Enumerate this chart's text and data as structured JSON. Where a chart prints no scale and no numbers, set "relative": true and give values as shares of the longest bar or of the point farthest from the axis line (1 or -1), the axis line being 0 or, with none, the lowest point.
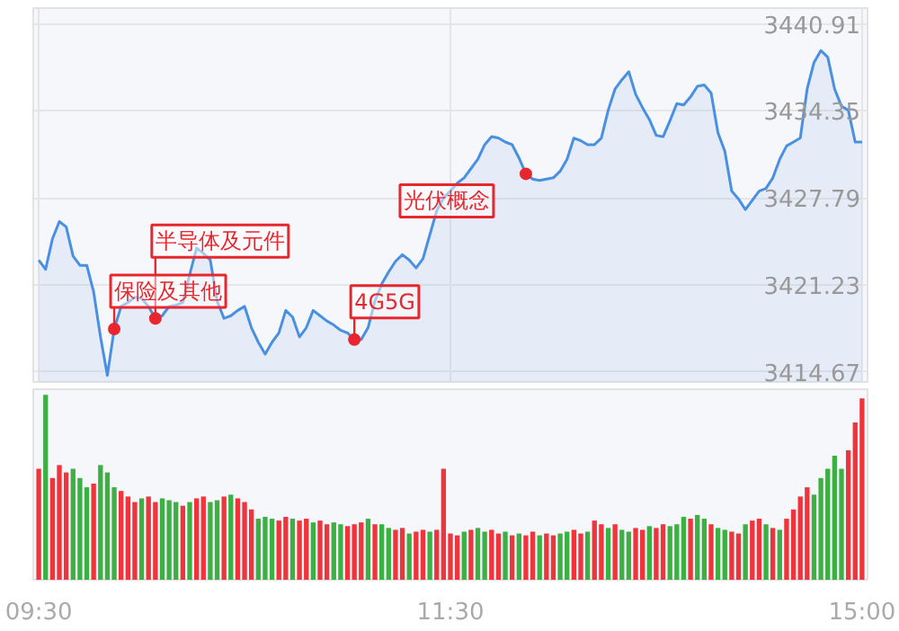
{
  "chart_data": [
    {
      "type": "area",
      "ylim": [
        3413.9,
        3442.1
      ],
      "tick_labels": "y",
      "grid": true,
      "categories": [
        null,
        null,
        null,
        null,
        null,
        null,
        null,
        null,
        null,
        null,
        null,
        null,
        null,
        null,
        null,
        null,
        null,
        null,
        null,
        null,
        null,
        null,
        null,
        null,
        null,
        null,
        null,
        null,
        null,
        null,
        null,
        null,
        null,
        null,
        null,
        null,
        null,
        null,
        null,
        null,
        null,
        null,
        null,
        null,
        null,
        null,
        null,
        null,
        null,
        null,
        null,
        null,
        null,
        null,
        null,
        null,
        null,
        null,
        null,
        null,
        null,
        null,
        null,
        null,
        null,
        null,
        null,
        null,
        null,
        null,
        null,
        null,
        null,
        null,
        null,
        null,
        null,
        null,
        null,
        null,
        null,
        null,
        null,
        null,
        null,
        null,
        null,
        null,
        null,
        null,
        null,
        null,
        null,
        null,
        null,
        null,
        null,
        null,
        null,
        null,
        null,
        null,
        null,
        null,
        null,
        null,
        null,
        null,
        null,
        null,
        null,
        null,
        null,
        null,
        null,
        null,
        null,
        null,
        null,
        null,
        null
      ],
      "yticks": [
        3414.67,
        3421.23,
        3427.79,
        3434.35,
        3440.91
      ],
      "series": [
        {
          "type": "area",
          "color": "#4a90e2",
          "values": [
            3423.1,
            3422.4,
            3424.7,
            3426.0,
            3425.6,
            3423.4,
            3422.7,
            3422.7,
            3420.7,
            3417.3,
            3414.4,
            3417.9,
            3419.6,
            3419.9,
            3420.3,
            3420.2,
            3419.6,
            3418.7,
            3418.9,
            3419.6,
            3419.7,
            3419.9,
            3422.0,
            3424.0,
            3423.6,
            3423.1,
            3420.0,
            3418.7,
            3418.9,
            3419.3,
            3419.6,
            3418.0,
            3416.9,
            3416.0,
            3416.9,
            3417.6,
            3419.3,
            3418.8,
            3417.3,
            3418.0,
            3419.3,
            3418.9,
            3418.5,
            3418.2,
            3417.8,
            3417.6,
            3417.1,
            3417.1,
            3418.0,
            3420.0,
            3421.3,
            3422.2,
            3423.0,
            3423.5,
            3423.1,
            3422.5,
            3423.2,
            3425.0,
            3426.8,
            3427.8,
            3428.3,
            3428.9,
            3429.3,
            3430.0,
            3430.7,
            3431.8,
            3432.4,
            3432.3,
            3432.0,
            3431.8,
            3430.8,
            3429.6,
            3429.2,
            3429.1,
            3429.2,
            3429.3,
            3429.8,
            3430.7,
            3432.3,
            3432.1,
            3431.8,
            3431.8,
            3432.3,
            3434.4,
            3436.0,
            3436.7,
            3437.3,
            3435.6,
            3434.6,
            3433.7,
            3432.5,
            3432.4,
            3433.6,
            3434.9,
            3434.8,
            3435.4,
            3436.2,
            3436.3,
            3435.7,
            3432.7,
            3431.3,
            3428.3,
            3427.7,
            3426.9,
            3427.6,
            3428.3,
            3428.5,
            3429.3,
            3430.7,
            3431.7,
            3432.0,
            3432.3,
            3436.0,
            3438.0,
            3438.9,
            3438.4,
            3436.0,
            3434.7,
            3434.4,
            3432.0,
            3432.0
          ]
        },
        {
          "type": "scatter",
          "color": "#e8262e",
          "values": [
            null,
            null,
            null,
            null,
            null,
            null,
            null,
            null,
            null,
            null,
            null,
            3417.9,
            null,
            null,
            null,
            null,
            null,
            3418.7,
            null,
            null,
            null,
            null,
            null,
            null,
            null,
            null,
            null,
            null,
            null,
            null,
            null,
            null,
            null,
            null,
            null,
            null,
            null,
            null,
            null,
            null,
            null,
            null,
            null,
            null,
            null,
            null,
            3417.1,
            null,
            null,
            null,
            null,
            null,
            null,
            null,
            null,
            null,
            null,
            null,
            null,
            null,
            null,
            null,
            null,
            null,
            null,
            null,
            null,
            null,
            null,
            null,
            null,
            3429.6,
            null,
            null,
            null,
            null,
            null,
            null,
            null,
            null,
            null,
            null,
            null,
            null,
            null,
            null,
            null,
            null,
            null,
            null,
            null,
            null,
            null,
            null,
            null,
            null,
            null,
            null,
            null,
            null,
            null,
            null,
            null,
            null,
            null,
            null,
            null,
            null,
            null,
            null,
            null,
            null,
            null,
            null,
            null,
            null,
            null,
            null,
            null,
            null,
            null
          ]
        }
      ],
      "annotations": [
        "保险及其他",
        "半导体及元件",
        "4G5G",
        "光伏概念"
      ]
    },
    {
      "type": "bar",
      "relative": true,
      "tick_labels": "x",
      "categories": [
        "09:30",
        null,
        null,
        null,
        null,
        null,
        null,
        null,
        null,
        null,
        null,
        null,
        null,
        null,
        null,
        null,
        null,
        null,
        null,
        null,
        null,
        null,
        null,
        null,
        null,
        null,
        null,
        null,
        null,
        null,
        null,
        null,
        null,
        null,
        null,
        null,
        null,
        null,
        null,
        null,
        null,
        null,
        null,
        null,
        null,
        null,
        null,
        null,
        null,
        null,
        null,
        null,
        null,
        null,
        null,
        null,
        null,
        null,
        null,
        null,
        "11:30",
        null,
        null,
        null,
        null,
        null,
        null,
        null,
        null,
        null,
        null,
        null,
        null,
        null,
        null,
        null,
        null,
        null,
        null,
        null,
        null,
        null,
        null,
        null,
        null,
        null,
        null,
        null,
        null,
        null,
        null,
        null,
        null,
        null,
        null,
        null,
        null,
        null,
        null,
        null,
        null,
        null,
        null,
        null,
        null,
        null,
        null,
        null,
        null,
        null,
        null,
        null,
        null,
        null,
        null,
        null,
        null,
        null,
        null,
        null,
        "15:00"
      ],
      "values": [
        0.6,
        1.0,
        0.55,
        0.62,
        0.58,
        0.6,
        0.55,
        0.5,
        0.52,
        0.62,
        0.58,
        0.5,
        0.48,
        0.45,
        0.42,
        0.44,
        0.45,
        0.42,
        0.44,
        0.43,
        0.42,
        0.4,
        0.42,
        0.44,
        0.45,
        0.42,
        0.43,
        0.45,
        0.46,
        0.44,
        0.42,
        0.38,
        0.33,
        0.34,
        0.33,
        0.32,
        0.34,
        0.33,
        0.32,
        0.33,
        0.31,
        0.32,
        0.3,
        0.31,
        0.3,
        0.29,
        0.3,
        0.31,
        0.33,
        0.3,
        0.3,
        0.28,
        0.27,
        0.28,
        0.25,
        0.26,
        0.27,
        0.26,
        0.27,
        0.6,
        0.25,
        0.24,
        0.26,
        0.27,
        0.28,
        0.26,
        0.27,
        0.25,
        0.26,
        0.24,
        0.25,
        0.24,
        0.26,
        0.24,
        0.25,
        0.24,
        0.25,
        0.26,
        0.27,
        0.25,
        0.26,
        0.32,
        0.3,
        0.28,
        0.3,
        0.27,
        0.26,
        0.28,
        0.27,
        0.29,
        0.28,
        0.3,
        0.29,
        0.3,
        0.34,
        0.33,
        0.35,
        0.33,
        0.3,
        0.28,
        0.27,
        0.26,
        0.25,
        0.3,
        0.32,
        0.33,
        0.3,
        0.28,
        0.27,
        0.33,
        0.38,
        0.45,
        0.5,
        0.46,
        0.55,
        0.6,
        0.67,
        0.6,
        0.7,
        0.85,
        0.98
      ],
      "colors": [
        "#f0343c",
        "#3cb043",
        "#f0343c",
        "#f0343c",
        "#f0343c",
        "#3cb043",
        "#3cb043",
        "#3cb043",
        "#f0343c",
        "#3cb043",
        "#3cb043",
        "#3cb043",
        "#f0343c",
        "#f0343c",
        "#f0343c",
        "#3cb043",
        "#f0343c",
        "#f0343c",
        "#3cb043",
        "#3cb043",
        "#3cb043",
        "#f0343c",
        "#3cb043",
        "#f0343c",
        "#f0343c",
        "#3cb043",
        "#3cb043",
        "#f0343c",
        "#3cb043",
        "#f0343c",
        "#f0343c",
        "#f0343c",
        "#3cb043",
        "#3cb043",
        "#3cb043",
        "#f0343c",
        "#f0343c",
        "#3cb043",
        "#f0343c",
        "#f0343c",
        "#3cb043",
        "#f0343c",
        "#f0343c",
        "#3cb043",
        "#3cb043",
        "#f0343c",
        "#f0343c",
        "#f0343c",
        "#3cb043",
        "#f0343c",
        "#3cb043",
        "#3cb043",
        "#f0343c",
        "#f0343c",
        "#3cb043",
        "#f0343c",
        "#f0343c",
        "#3cb043",
        "#f0343c",
        "#f0343c",
        "#f0343c",
        "#f0343c",
        "#3cb043",
        "#f0343c",
        "#3cb043",
        "#3cb043",
        "#f0343c",
        "#f0343c",
        "#3cb043",
        "#f0343c",
        "#3cb043",
        "#f0343c",
        "#f0343c",
        "#3cb043",
        "#f0343c",
        "#f0343c",
        "#3cb043",
        "#3cb043",
        "#f0343c",
        "#f0343c",
        "#3cb043",
        "#f0343c",
        "#f0343c",
        "#3cb043",
        "#f0343c",
        "#3cb043",
        "#3cb043",
        "#f0343c",
        "#f0343c",
        "#3cb043",
        "#f0343c",
        "#f0343c",
        "#3cb043",
        "#3cb043",
        "#3cb043",
        "#f0343c",
        "#3cb043",
        "#3cb043",
        "#f0343c",
        "#3cb043",
        "#3cb043",
        "#f0343c",
        "#f0343c",
        "#3cb043",
        "#f0343c",
        "#f0343c",
        "#3cb043",
        "#f0343c",
        "#3cb043",
        "#f0343c",
        "#f0343c",
        "#f0343c",
        "#f0343c",
        "#3cb043",
        "#3cb043",
        "#3cb043",
        "#3cb043",
        "#3cb043",
        "#f0343c",
        "#f0343c",
        "#f0343c"
      ]
    }
  ]
}
